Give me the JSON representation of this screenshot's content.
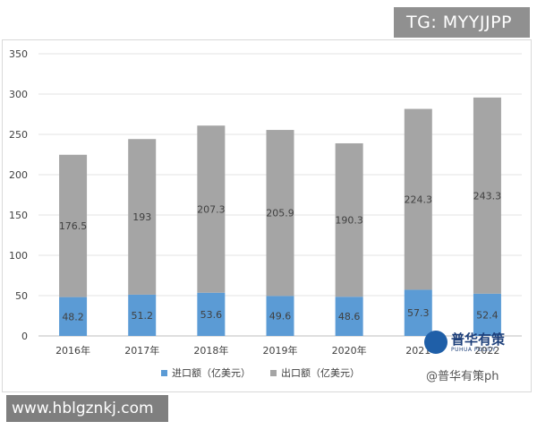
{
  "chart_data": {
    "type": "bar",
    "stacked": true,
    "categories": [
      "2016年",
      "2017年",
      "2018年",
      "2019年",
      "2020年",
      "2021",
      "2022"
    ],
    "series": [
      {
        "name": "进口额（亿美元）",
        "values": [
          48.2,
          51.2,
          53.6,
          49.6,
          48.6,
          57.3,
          52.4
        ],
        "color": "#5b9bd5"
      },
      {
        "name": "出口额（亿美元）",
        "values": [
          176.5,
          193,
          207.3,
          205.9,
          190.3,
          224.3,
          243.3
        ],
        "color": "#a5a5a5"
      }
    ],
    "ylim": [
      0,
      350
    ],
    "yticks": [
      0,
      50,
      100,
      150,
      200,
      250,
      300,
      350
    ],
    "grid": true,
    "legend": "bottom",
    "title": "",
    "xlabel": "",
    "ylabel": ""
  },
  "overlays": {
    "tg": "TG: MYYJJPP",
    "url": "www.hblgznkj.com",
    "logo_name": "普华有策",
    "logo_sub": "PUHUA POLICY",
    "watermark": "@普华有策ph"
  }
}
